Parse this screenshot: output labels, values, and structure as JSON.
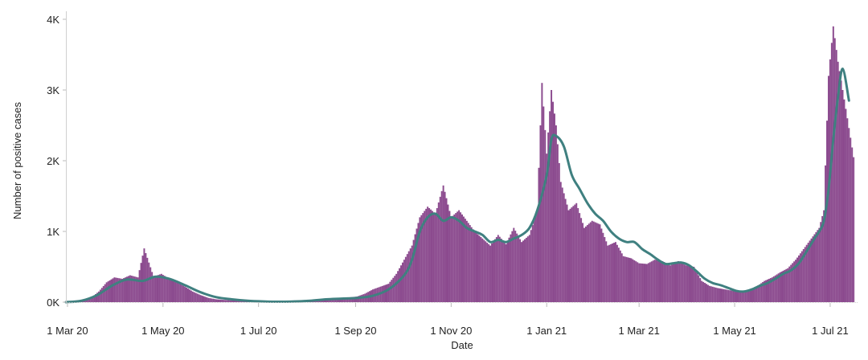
{
  "chart_data": {
    "type": "bar",
    "title": "",
    "xlabel": "Date",
    "ylabel": "Number of positive cases",
    "ylim": [
      0,
      4000
    ],
    "xlim": [
      "2020-02-29",
      "2021-07-19"
    ],
    "grid": false,
    "y_ticks": [
      {
        "value": 0,
        "label": "0K"
      },
      {
        "value": 1000,
        "label": "1K"
      },
      {
        "value": 2000,
        "label": "2K"
      },
      {
        "value": 3000,
        "label": "3K"
      },
      {
        "value": 4000,
        "label": "4K"
      }
    ],
    "x_ticks": [
      {
        "date": "2020-03-01",
        "label": "1 Mar 20"
      },
      {
        "date": "2020-05-01",
        "label": "1 May 20"
      },
      {
        "date": "2020-07-01",
        "label": "1 Jul 20"
      },
      {
        "date": "2020-09-01",
        "label": "1 Sep 20"
      },
      {
        "date": "2020-11-01",
        "label": "1 Nov 20"
      },
      {
        "date": "2021-01-01",
        "label": "1 Jan 21"
      },
      {
        "date": "2021-03-01",
        "label": "1 Mar 21"
      },
      {
        "date": "2021-05-01",
        "label": "1 May 21"
      },
      {
        "date": "2021-07-01",
        "label": "1 Jul 21"
      }
    ],
    "series": [
      {
        "kind": "bar",
        "color": "#8b4a8e",
        "x": [
          "2020-03-01",
          "2020-03-06",
          "2020-03-11",
          "2020-03-16",
          "2020-03-21",
          "2020-03-26",
          "2020-03-31",
          "2020-04-05",
          "2020-04-10",
          "2020-04-15",
          "2020-04-19",
          "2020-04-25",
          "2020-04-30",
          "2020-05-05",
          "2020-05-10",
          "2020-05-15",
          "2020-05-20",
          "2020-05-25",
          "2020-05-30",
          "2020-06-04",
          "2020-06-14",
          "2020-06-24",
          "2020-07-04",
          "2020-07-14",
          "2020-07-24",
          "2020-08-03",
          "2020-08-13",
          "2020-08-23",
          "2020-09-02",
          "2020-09-07",
          "2020-09-12",
          "2020-09-17",
          "2020-09-22",
          "2020-09-27",
          "2020-10-02",
          "2020-10-07",
          "2020-10-12",
          "2020-10-17",
          "2020-10-22",
          "2020-10-27",
          "2020-11-01",
          "2020-11-06",
          "2020-11-11",
          "2020-11-16",
          "2020-11-21",
          "2020-11-26",
          "2020-12-01",
          "2020-12-06",
          "2020-12-11",
          "2020-12-16",
          "2020-12-21",
          "2020-12-26",
          "2020-12-29",
          "2021-01-01",
          "2021-01-04",
          "2021-01-07",
          "2021-01-10",
          "2021-01-15",
          "2021-01-20",
          "2021-01-25",
          "2021-01-30",
          "2021-02-04",
          "2021-02-09",
          "2021-02-14",
          "2021-02-19",
          "2021-02-24",
          "2021-03-01",
          "2021-03-06",
          "2021-03-11",
          "2021-03-16",
          "2021-03-21",
          "2021-03-26",
          "2021-03-31",
          "2021-04-05",
          "2021-04-10",
          "2021-04-15",
          "2021-04-20",
          "2021-04-25",
          "2021-04-30",
          "2021-05-05",
          "2021-05-10",
          "2021-05-15",
          "2021-05-20",
          "2021-05-25",
          "2021-05-30",
          "2021-06-04",
          "2021-06-09",
          "2021-06-14",
          "2021-06-19",
          "2021-06-24",
          "2021-06-27",
          "2021-06-30",
          "2021-07-03",
          "2021-07-06",
          "2021-07-09",
          "2021-07-12",
          "2021-07-16"
        ],
        "values": [
          5,
          10,
          30,
          60,
          150,
          280,
          350,
          330,
          380,
          350,
          760,
          360,
          400,
          330,
          280,
          220,
          150,
          100,
          60,
          40,
          25,
          20,
          15,
          10,
          15,
          30,
          45,
          55,
          80,
          120,
          180,
          220,
          260,
          400,
          600,
          800,
          1200,
          1350,
          1250,
          1650,
          1200,
          1300,
          1150,
          1000,
          900,
          800,
          950,
          820,
          1050,
          850,
          950,
          1300,
          3100,
          2100,
          3000,
          2500,
          1700,
          1300,
          1400,
          1050,
          1150,
          1100,
          800,
          850,
          650,
          620,
          550,
          540,
          600,
          580,
          520,
          580,
          520,
          500,
          300,
          230,
          200,
          180,
          160,
          150,
          180,
          220,
          300,
          350,
          420,
          480,
          600,
          750,
          900,
          1050,
          1300,
          3200,
          3900,
          3400,
          3000,
          2600,
          2050
        ]
      },
      {
        "kind": "line",
        "name": "",
        "color": "#3f8080",
        "x": [
          "2020-02-29",
          "2020-03-10",
          "2020-03-20",
          "2020-03-30",
          "2020-04-08",
          "2020-04-18",
          "2020-04-26",
          "2020-05-05",
          "2020-05-15",
          "2020-05-25",
          "2020-06-04",
          "2020-06-14",
          "2020-06-24",
          "2020-07-04",
          "2020-07-14",
          "2020-07-24",
          "2020-08-03",
          "2020-08-13",
          "2020-08-23",
          "2020-09-02",
          "2020-09-12",
          "2020-09-22",
          "2020-10-02",
          "2020-10-07",
          "2020-10-12",
          "2020-10-17",
          "2020-10-22",
          "2020-10-27",
          "2020-11-01",
          "2020-11-06",
          "2020-11-11",
          "2020-11-16",
          "2020-11-21",
          "2020-11-26",
          "2020-12-01",
          "2020-12-06",
          "2020-12-11",
          "2020-12-16",
          "2020-12-21",
          "2020-12-26",
          "2021-01-01",
          "2021-01-04",
          "2021-01-07",
          "2021-01-12",
          "2021-01-17",
          "2021-01-22",
          "2021-01-27",
          "2021-02-01",
          "2021-02-06",
          "2021-02-11",
          "2021-02-16",
          "2021-02-21",
          "2021-02-26",
          "2021-03-03",
          "2021-03-08",
          "2021-03-13",
          "2021-03-18",
          "2021-03-23",
          "2021-03-28",
          "2021-04-02",
          "2021-04-07",
          "2021-04-12",
          "2021-04-17",
          "2021-04-22",
          "2021-04-27",
          "2021-05-02",
          "2021-05-07",
          "2021-05-12",
          "2021-05-17",
          "2021-05-22",
          "2021-05-27",
          "2021-06-01",
          "2021-06-06",
          "2021-06-11",
          "2021-06-16",
          "2021-06-21",
          "2021-06-24",
          "2021-06-27",
          "2021-06-30",
          "2021-07-03",
          "2021-07-06",
          "2021-07-09",
          "2021-07-13"
        ],
        "values": [
          0,
          20,
          100,
          240,
          320,
          300,
          360,
          330,
          240,
          140,
          70,
          40,
          20,
          10,
          5,
          10,
          20,
          40,
          50,
          60,
          90,
          180,
          380,
          600,
          1000,
          1200,
          1250,
          1150,
          1200,
          1150,
          1050,
          1000,
          950,
          850,
          880,
          850,
          900,
          950,
          1050,
          1300,
          1800,
          2300,
          2350,
          2200,
          1800,
          1600,
          1400,
          1250,
          1150,
          1000,
          900,
          850,
          850,
          750,
          680,
          600,
          540,
          550,
          560,
          520,
          430,
          330,
          270,
          240,
          200,
          160,
          150,
          180,
          230,
          270,
          330,
          400,
          450,
          550,
          720,
          900,
          1000,
          1150,
          1600,
          2300,
          2900,
          3300,
          2850
        ]
      }
    ]
  }
}
